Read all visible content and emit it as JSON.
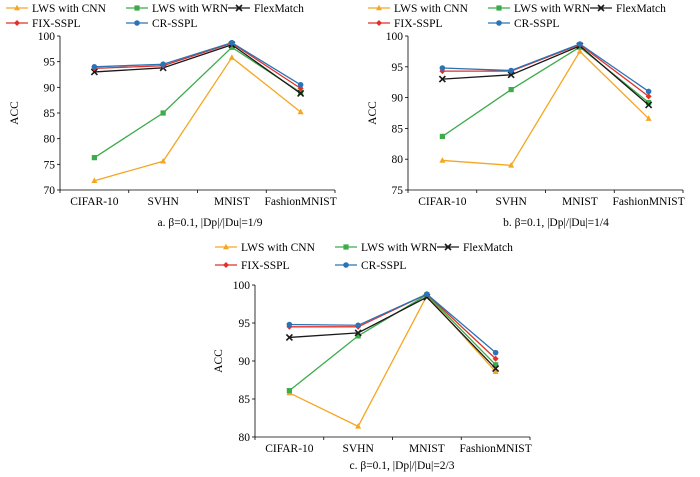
{
  "chart_data": [
    {
      "type": "line",
      "caption": "a.  β=0.1, |Dp|/|Du|=1/9",
      "ylabel": "ACC",
      "categories": [
        "CIFAR-10",
        "SVHN",
        "MNIST",
        "FashionMNIST"
      ],
      "ylim": [
        70,
        100
      ],
      "yticks": [
        70,
        75,
        80,
        85,
        90,
        95,
        100
      ],
      "series": [
        {
          "name": "LWS with CNN",
          "color": "#f5a623",
          "marker": "triangle",
          "values": [
            71.8,
            75.6,
            95.8,
            85.2
          ]
        },
        {
          "name": "LWS with WRN",
          "color": "#3cab4a",
          "marker": "square",
          "values": [
            76.3,
            85.0,
            97.8,
            89.0
          ]
        },
        {
          "name": "FlexMatch",
          "color": "#1a1a1a",
          "marker": "x",
          "values": [
            93.0,
            93.8,
            98.3,
            88.8
          ]
        },
        {
          "name": "FIX-SSPL",
          "color": "#e0312b",
          "marker": "diamond",
          "values": [
            93.7,
            94.2,
            98.6,
            89.8
          ]
        },
        {
          "name": "CR-SSPL",
          "color": "#2b73b5",
          "marker": "circle",
          "values": [
            94.0,
            94.5,
            98.7,
            90.5
          ]
        }
      ]
    },
    {
      "type": "line",
      "caption": "b.  β=0.1, |Dp|/|Du|=1/4",
      "ylabel": "ACC",
      "categories": [
        "CIFAR-10",
        "SVHN",
        "MNIST",
        "FashionMNIST"
      ],
      "ylim": [
        75,
        100
      ],
      "yticks": [
        75,
        80,
        85,
        90,
        95,
        100
      ],
      "series": [
        {
          "name": "LWS with CNN",
          "color": "#f5a623",
          "marker": "triangle",
          "values": [
            79.8,
            79.0,
            97.5,
            86.6
          ]
        },
        {
          "name": "LWS with WRN",
          "color": "#3cab4a",
          "marker": "square",
          "values": [
            83.7,
            91.3,
            98.2,
            89.2
          ]
        },
        {
          "name": "FlexMatch",
          "color": "#1a1a1a",
          "marker": "x",
          "values": [
            93.0,
            93.7,
            98.4,
            88.8
          ]
        },
        {
          "name": "FIX-SSPL",
          "color": "#e0312b",
          "marker": "diamond",
          "values": [
            94.3,
            94.3,
            98.6,
            90.2
          ]
        },
        {
          "name": "CR-SSPL",
          "color": "#2b73b5",
          "marker": "circle",
          "values": [
            94.8,
            94.4,
            98.7,
            91.0
          ]
        }
      ]
    },
    {
      "type": "line",
      "caption": "c.  β=0.1, |Dp|/|Du|=2/3",
      "ylabel": "ACC",
      "categories": [
        "CIFAR-10",
        "SVHN",
        "MNIST",
        "FashionMNIST"
      ],
      "ylim": [
        80,
        100
      ],
      "yticks": [
        80,
        85,
        90,
        95,
        100
      ],
      "series": [
        {
          "name": "LWS with CNN",
          "color": "#f5a623",
          "marker": "triangle",
          "values": [
            85.8,
            81.4,
            98.6,
            88.6
          ]
        },
        {
          "name": "LWS with WRN",
          "color": "#3cab4a",
          "marker": "square",
          "values": [
            86.1,
            93.3,
            98.7,
            89.5
          ]
        },
        {
          "name": "FlexMatch",
          "color": "#1a1a1a",
          "marker": "x",
          "values": [
            93.1,
            93.7,
            98.4,
            89.0
          ]
        },
        {
          "name": "FIX-SSPL",
          "color": "#e0312b",
          "marker": "diamond",
          "values": [
            94.5,
            94.5,
            98.8,
            90.3
          ]
        },
        {
          "name": "CR-SSPL",
          "color": "#2b73b5",
          "marker": "circle",
          "values": [
            94.8,
            94.7,
            98.8,
            91.1
          ]
        }
      ]
    }
  ]
}
